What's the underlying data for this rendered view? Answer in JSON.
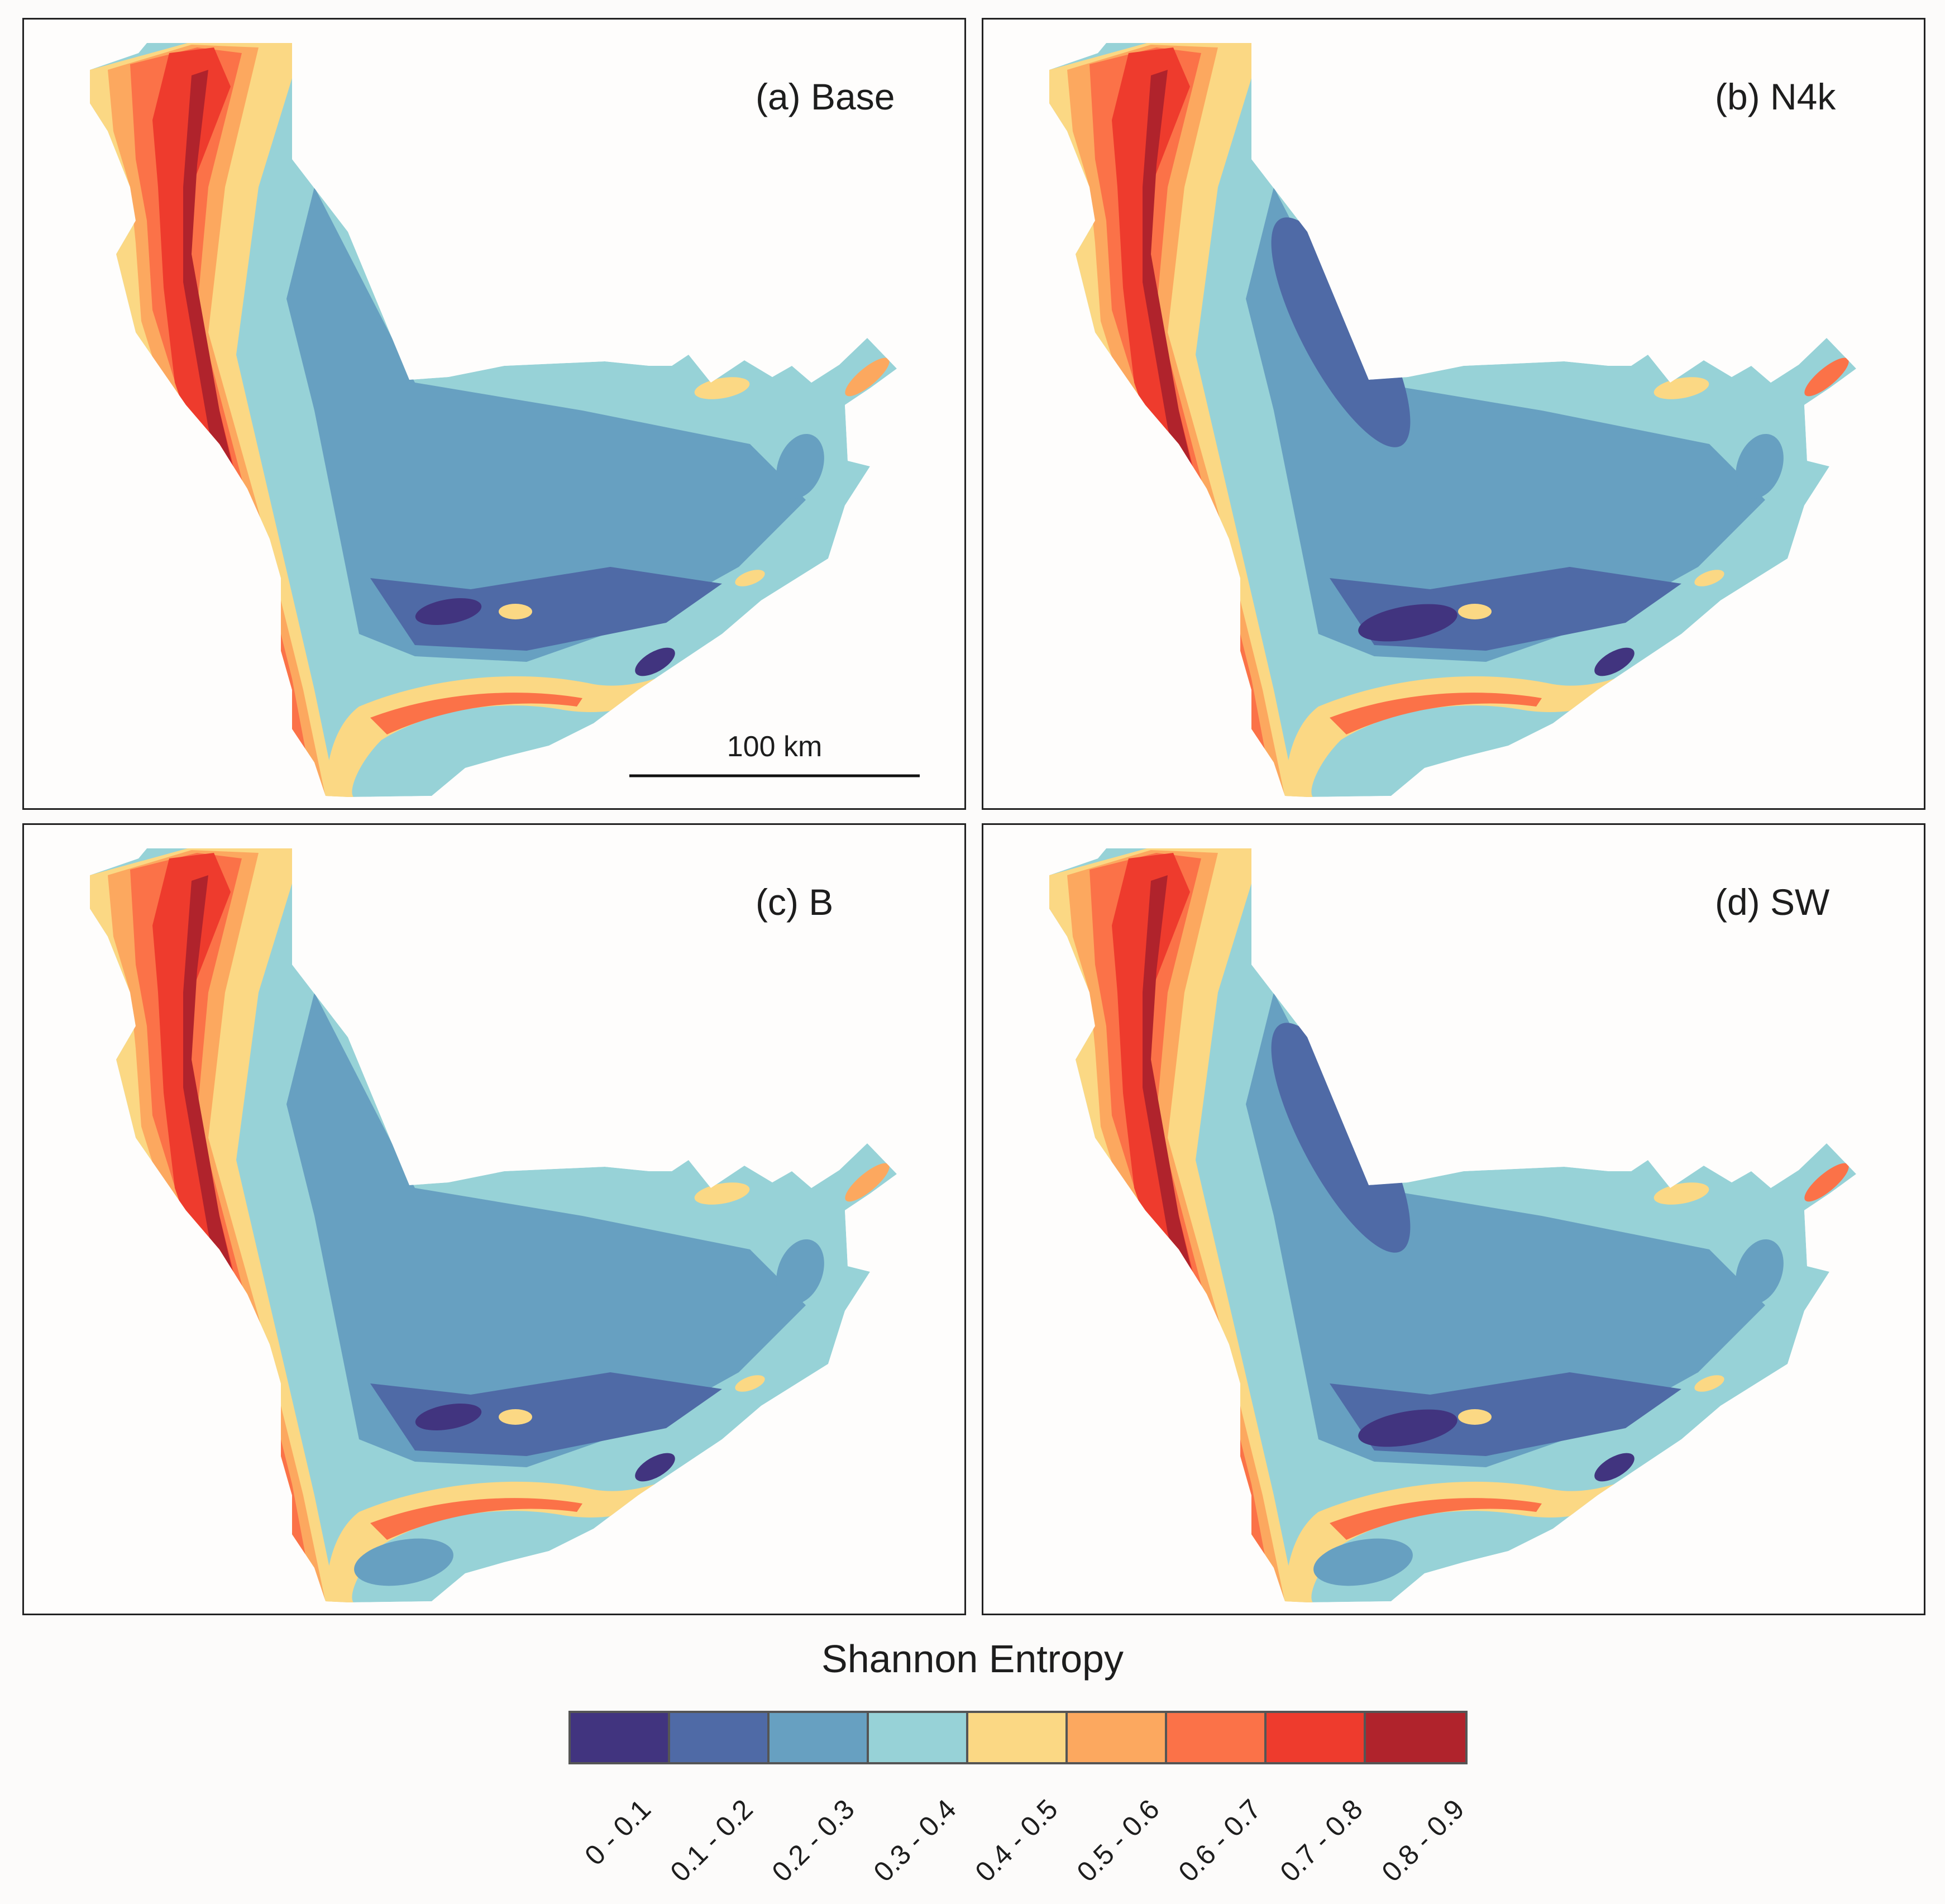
{
  "panels": [
    {
      "id": "a",
      "label": "(a) Base"
    },
    {
      "id": "b",
      "label": "(b) N4k"
    },
    {
      "id": "c",
      "label": "(c) B"
    },
    {
      "id": "d",
      "label": "(d) SW"
    }
  ],
  "scale_bar": {
    "label": "100 km"
  },
  "legend": {
    "title": "Shannon Entropy",
    "classes": [
      {
        "range": "0 - 0.1",
        "color": "#41347f"
      },
      {
        "range": "0.1 - 0.2",
        "color": "#4f6aa6"
      },
      {
        "range": "0.2 - 0.3",
        "color": "#67a0c1"
      },
      {
        "range": "0.3 - 0.4",
        "color": "#97d2d7"
      },
      {
        "range": "0.4 - 0.5",
        "color": "#fbd884"
      },
      {
        "range": "0.5 - 0.6",
        "color": "#fca85f"
      },
      {
        "range": "0.6 - 0.7",
        "color": "#fb7248"
      },
      {
        "range": "0.7 - 0.8",
        "color": "#ee3b2d"
      },
      {
        "range": "0.8 - 0.9",
        "color": "#b0232c"
      }
    ]
  }
}
